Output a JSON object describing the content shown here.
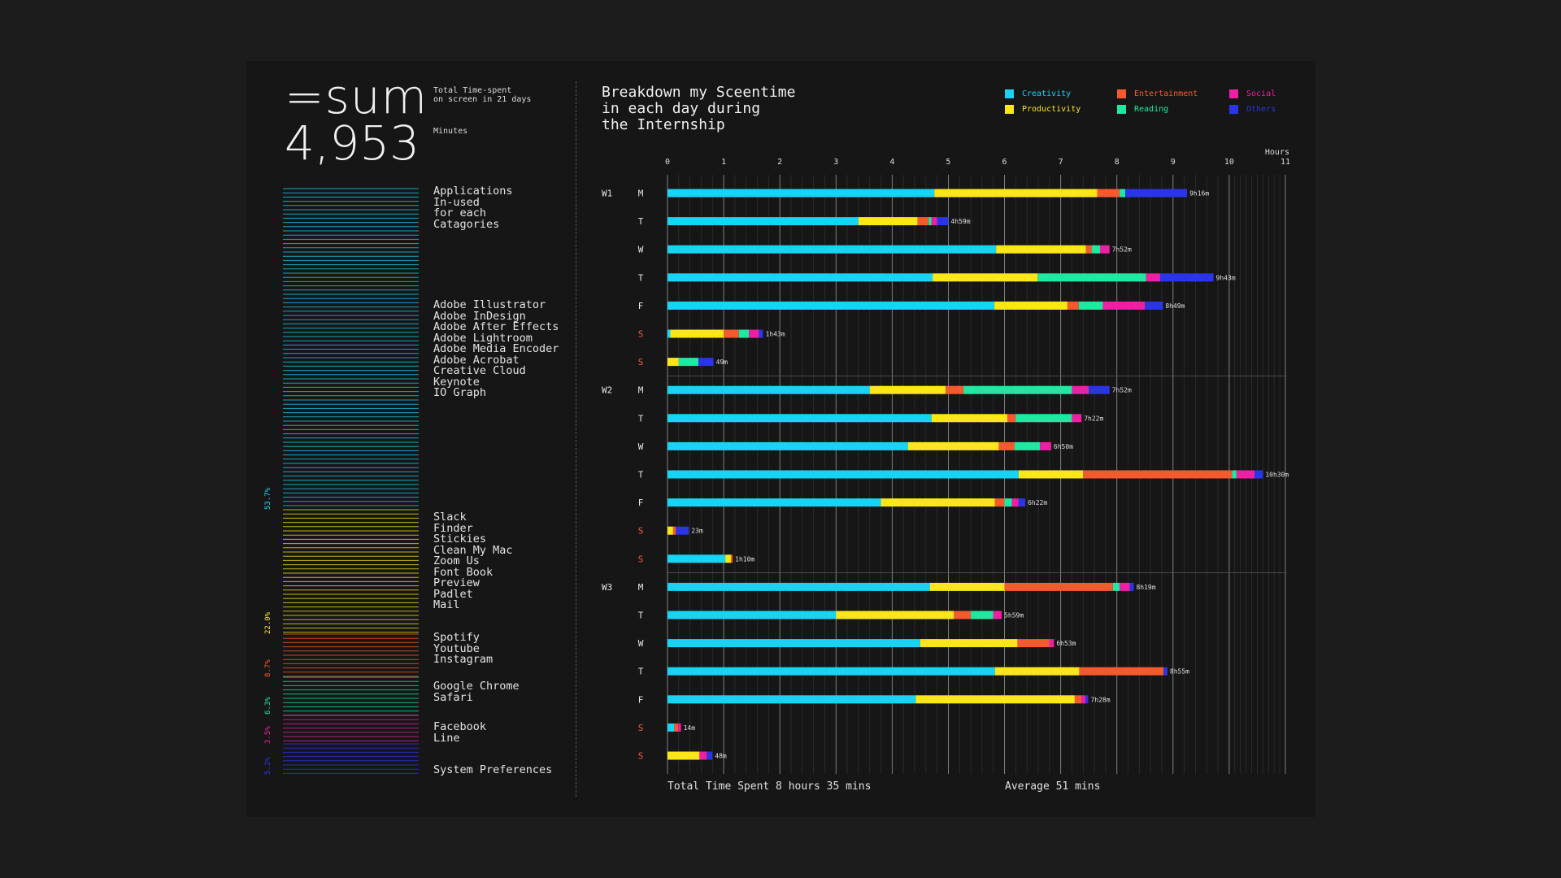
{
  "summary": {
    "sum_label": "=sum",
    "total_minutes": "4,953",
    "total_label": "Total Time-spent\non screen in 21 days",
    "unit_label": "Minutes"
  },
  "app_list": {
    "heading": "Applications\nIn-used\nfor each\nCatagories",
    "groups": [
      {
        "category": "Creativity",
        "apps": "Adobe Illustrator\nAdobe InDesign\nAdobe After Effects\nAdobe Lightroom\nAdobe Media Encoder\nAdobe Acrobat\nCreative Cloud\nKeynote\nIO Graph"
      },
      {
        "category": "Productivity",
        "apps": "Slack\nFinder\nStickies\nClean My Mac\nZoom Us\nFont Book\nPreview\nPadlet\nMail"
      },
      {
        "category": "Entertainment",
        "apps": "Spotify\nYoutube\nInstagram"
      },
      {
        "category": "Reading",
        "apps": "Google Chrome\nSafari"
      },
      {
        "category": "Social",
        "apps": "Facebook\nLine"
      },
      {
        "category": "Others",
        "apps": "System Preferences"
      }
    ],
    "percentages": [
      {
        "category": "Creativity",
        "value": "53.7%"
      },
      {
        "category": "Productivity",
        "value": "22.0%"
      },
      {
        "category": "Entertainment",
        "value": "8.7%"
      },
      {
        "category": "Reading",
        "value": "6.3%"
      },
      {
        "category": "Social",
        "value": "3.5%"
      },
      {
        "category": "Others",
        "value": "5.2%"
      }
    ]
  },
  "chart_title": "Breakdown my Sceentime\nin each day during\nthe Internship",
  "legend": [
    {
      "name": "Creativity",
      "color": "#17d4f5"
    },
    {
      "name": "Entertainment",
      "color": "#f55a2e"
    },
    {
      "name": "Social",
      "color": "#ee1fa3"
    },
    {
      "name": "Productivity",
      "color": "#fbe619"
    },
    {
      "name": "Reading",
      "color": "#1fe8a0"
    },
    {
      "name": "Others",
      "color": "#2a35e8"
    }
  ],
  "footer": {
    "total": "Total Time Spent 8 hours 35 mins",
    "average": "Average 51 mins"
  },
  "chart_data": {
    "type": "bar",
    "orientation": "horizontal",
    "stacked": true,
    "xlabel": "Hours",
    "xlim": [
      0,
      11
    ],
    "x_ticks": [
      0,
      1,
      2,
      3,
      4,
      5,
      6,
      7,
      8,
      9,
      10,
      11
    ],
    "grid": true,
    "legend_placement": "top-right",
    "series_order": [
      "Creativity",
      "Productivity",
      "Entertainment",
      "Reading",
      "Social",
      "Others"
    ],
    "weekend_color": "#f0603c",
    "weeks": [
      {
        "label": "W1",
        "days": [
          {
            "day": "M",
            "weekend": false,
            "total": "9h16m",
            "values": [
              4.75,
              2.9,
              0.4,
              0.1,
              0,
              1.1
            ]
          },
          {
            "day": "T",
            "weekend": false,
            "total": "4h59m",
            "values": [
              3.4,
              1.05,
              0.2,
              0.05,
              0.1,
              0.2
            ]
          },
          {
            "day": "W",
            "weekend": false,
            "total": "7h52m",
            "values": [
              5.85,
              1.6,
              0.1,
              0.15,
              0.17,
              0
            ]
          },
          {
            "day": "T",
            "weekend": false,
            "total": "9h43m",
            "values": [
              4.72,
              1.87,
              0,
              1.93,
              0.25,
              0.95
            ]
          },
          {
            "day": "F",
            "weekend": false,
            "total": "8h49m",
            "values": [
              5.82,
              1.3,
              0.2,
              0.43,
              0.75,
              0.32
            ]
          },
          {
            "day": "S",
            "weekend": true,
            "total": "1h43m",
            "values": [
              0.05,
              0.95,
              0.27,
              0.18,
              0.18,
              0.07
            ]
          },
          {
            "day": "S",
            "weekend": true,
            "total": "49m",
            "values": [
              0,
              0.2,
              0,
              0.35,
              0,
              0.27
            ]
          }
        ]
      },
      {
        "label": "W2",
        "days": [
          {
            "day": "M",
            "weekend": false,
            "total": "7h52m",
            "values": [
              3.6,
              1.35,
              0.32,
              1.93,
              0.3,
              0.37
            ]
          },
          {
            "day": "T",
            "weekend": false,
            "total": "7h22m",
            "values": [
              4.7,
              1.35,
              0.15,
              1.0,
              0.17,
              0
            ]
          },
          {
            "day": "W",
            "weekend": false,
            "total": "6h50m",
            "values": [
              4.28,
              1.62,
              0.28,
              0.45,
              0.2,
              0
            ]
          },
          {
            "day": "T",
            "weekend": false,
            "total": "10h30m",
            "values": [
              6.25,
              1.15,
              2.65,
              0.08,
              0.32,
              0.15
            ]
          },
          {
            "day": "F",
            "weekend": false,
            "total": "6h22m",
            "values": [
              3.8,
              2.03,
              0.17,
              0.13,
              0.12,
              0.12
            ]
          },
          {
            "day": "S",
            "weekend": true,
            "total": "23m",
            "values": [
              0,
              0.1,
              0.05,
              0,
              0,
              0.23
            ]
          },
          {
            "day": "S",
            "weekend": true,
            "total": "1h10m",
            "values": [
              1.03,
              0.1,
              0.03,
              0,
              0,
              0
            ]
          }
        ]
      },
      {
        "label": "W3",
        "days": [
          {
            "day": "M",
            "weekend": false,
            "total": "8h19m",
            "values": [
              4.67,
              1.33,
              1.93,
              0.12,
              0.18,
              0.07
            ]
          },
          {
            "day": "T",
            "weekend": false,
            "total": "5h59m",
            "values": [
              3.0,
              2.1,
              0.3,
              0.4,
              0.15,
              0
            ]
          },
          {
            "day": "W",
            "weekend": false,
            "total": "6h53m",
            "values": [
              4.5,
              1.73,
              0.57,
              0,
              0.08,
              0
            ]
          },
          {
            "day": "T",
            "weekend": false,
            "total": "8h55m",
            "values": [
              5.83,
              1.5,
              1.5,
              0,
              0,
              0.07
            ]
          },
          {
            "day": "F",
            "weekend": false,
            "total": "7h28m",
            "values": [
              4.42,
              2.83,
              0.12,
              0,
              0.07,
              0.05
            ]
          },
          {
            "day": "S",
            "weekend": true,
            "total": "14m",
            "values": [
              0.12,
              0,
              0.07,
              0,
              0.05,
              0
            ]
          },
          {
            "day": "S",
            "weekend": true,
            "total": "48m",
            "values": [
              0,
              0.57,
              0,
              0,
              0.13,
              0.1
            ]
          }
        ]
      }
    ]
  }
}
